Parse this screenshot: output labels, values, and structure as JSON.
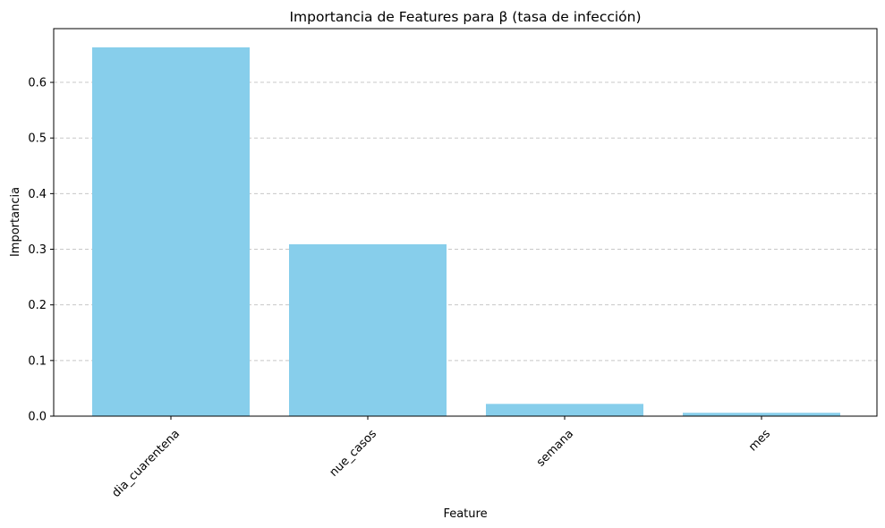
{
  "chart_data": {
    "type": "bar",
    "title": "Importancia de Features para β (tasa de infección)",
    "xlabel": "Feature",
    "ylabel": "Importancia",
    "categories": [
      "dia_cuarentena",
      "nue_casos",
      "semana",
      "mes"
    ],
    "values": [
      0.663,
      0.309,
      0.022,
      0.006
    ],
    "ylim": [
      0,
      0.6966
    ],
    "yticks": [
      0.0,
      0.1,
      0.2,
      0.3,
      0.4,
      0.5,
      0.6
    ],
    "ytick_labels": [
      "0.0",
      "0.1",
      "0.2",
      "0.3",
      "0.4",
      "0.5",
      "0.6"
    ],
    "x_tick_rotation_deg": 45,
    "grid": {
      "axis": "y",
      "style": "dashed",
      "color": "#c8c8c8"
    },
    "bar_color": "#87ceeb",
    "legend": "none"
  }
}
